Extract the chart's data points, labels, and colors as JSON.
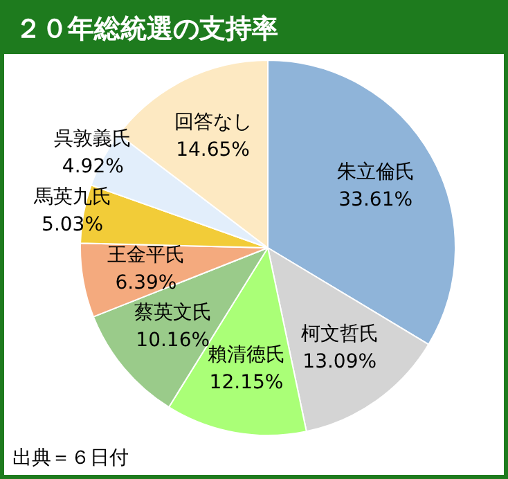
{
  "chart_data": {
    "type": "pie",
    "title": "２０年総統選の支持率",
    "categories": [
      "朱立倫氏",
      "柯文哲氏",
      "賴清徳氏",
      "蔡英文氏",
      "王金平氏",
      "馬英九氏",
      "呉敦義氏",
      "回答なし"
    ],
    "values": [
      33.61,
      13.09,
      12.15,
      10.16,
      6.39,
      5.03,
      4.92,
      14.65
    ],
    "colors": [
      "#8fb4d9",
      "#d4d4d4",
      "#aaff77",
      "#9acb8a",
      "#f4aa7e",
      "#f2cc38",
      "#e2eefb",
      "#fde9c2"
    ],
    "value_labels": [
      "33.61%",
      "13.09%",
      "12.15%",
      "10.16%",
      "6.39%",
      "5.03%",
      "4.92%",
      "14.65%"
    ],
    "legend": false,
    "annotations": [
      "出典＝６日付"
    ]
  }
}
